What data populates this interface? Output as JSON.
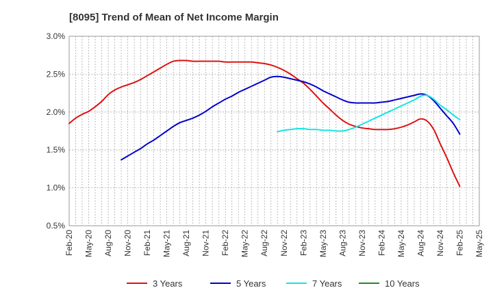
{
  "chart_data": {
    "type": "line",
    "title": "[8095]  Trend of Mean of Net Income Margin",
    "xlabel": "",
    "ylabel": "",
    "x_ticks": [
      "Feb-20",
      "May-20",
      "Aug-20",
      "Nov-20",
      "Feb-21",
      "May-21",
      "Aug-21",
      "Nov-21",
      "Feb-22",
      "May-22",
      "Aug-22",
      "Nov-22",
      "Feb-23",
      "May-23",
      "Aug-23",
      "Nov-23",
      "Feb-24",
      "May-24",
      "Aug-24",
      "Nov-24",
      "Feb-25",
      "May-25"
    ],
    "y_ticks": [
      "0.5%",
      "1.0%",
      "1.5%",
      "2.0%",
      "2.5%",
      "3.0%"
    ],
    "ylim": [
      0.5,
      3.0
    ],
    "grid": true,
    "legend_position": "bottom",
    "series": [
      {
        "name": "3 Years",
        "color": "#dd1111",
        "points": [
          [
            "Feb-20",
            1.85
          ],
          [
            "Mar-20",
            1.92
          ],
          [
            "Apr-20",
            1.97
          ],
          [
            "May-20",
            2.01
          ],
          [
            "Jun-20",
            2.07
          ],
          [
            "Jul-20",
            2.14
          ],
          [
            "Aug-20",
            2.23
          ],
          [
            "Sep-20",
            2.29
          ],
          [
            "Oct-20",
            2.33
          ],
          [
            "Nov-20",
            2.36
          ],
          [
            "Dec-20",
            2.39
          ],
          [
            "Jan-21",
            2.43
          ],
          [
            "Feb-21",
            2.48
          ],
          [
            "Mar-21",
            2.53
          ],
          [
            "Apr-21",
            2.58
          ],
          [
            "May-21",
            2.63
          ],
          [
            "Jun-21",
            2.67
          ],
          [
            "Jul-21",
            2.68
          ],
          [
            "Aug-21",
            2.68
          ],
          [
            "Sep-21",
            2.67
          ],
          [
            "Oct-21",
            2.67
          ],
          [
            "Nov-21",
            2.67
          ],
          [
            "Dec-21",
            2.67
          ],
          [
            "Jan-22",
            2.67
          ],
          [
            "Feb-22",
            2.66
          ],
          [
            "Mar-22",
            2.66
          ],
          [
            "Apr-22",
            2.66
          ],
          [
            "May-22",
            2.66
          ],
          [
            "Jun-22",
            2.66
          ],
          [
            "Jul-22",
            2.65
          ],
          [
            "Aug-22",
            2.64
          ],
          [
            "Sep-22",
            2.62
          ],
          [
            "Oct-22",
            2.59
          ],
          [
            "Nov-22",
            2.55
          ],
          [
            "Dec-22",
            2.5
          ],
          [
            "Jan-23",
            2.44
          ],
          [
            "Feb-23",
            2.38
          ],
          [
            "Mar-23",
            2.3
          ],
          [
            "Apr-23",
            2.21
          ],
          [
            "May-23",
            2.12
          ],
          [
            "Jun-23",
            2.04
          ],
          [
            "Jul-23",
            1.96
          ],
          [
            "Aug-23",
            1.89
          ],
          [
            "Sep-23",
            1.84
          ],
          [
            "Oct-23",
            1.81
          ],
          [
            "Nov-23",
            1.79
          ],
          [
            "Dec-23",
            1.78
          ],
          [
            "Jan-24",
            1.77
          ],
          [
            "Feb-24",
            1.77
          ],
          [
            "Mar-24",
            1.77
          ],
          [
            "Apr-24",
            1.78
          ],
          [
            "May-24",
            1.8
          ],
          [
            "Jun-24",
            1.83
          ],
          [
            "Jul-24",
            1.87
          ],
          [
            "Aug-24",
            1.91
          ],
          [
            "Sep-24",
            1.88
          ],
          [
            "Oct-24",
            1.77
          ],
          [
            "Nov-24",
            1.58
          ],
          [
            "Dec-24",
            1.4
          ],
          [
            "Jan-25",
            1.2
          ],
          [
            "Feb-25",
            1.02
          ]
        ]
      },
      {
        "name": "5 Years",
        "color": "#0000cc",
        "points": [
          [
            "Oct-20",
            1.37
          ],
          [
            "Nov-20",
            1.42
          ],
          [
            "Dec-20",
            1.47
          ],
          [
            "Jan-21",
            1.52
          ],
          [
            "Feb-21",
            1.58
          ],
          [
            "Mar-21",
            1.63
          ],
          [
            "Apr-21",
            1.69
          ],
          [
            "May-21",
            1.75
          ],
          [
            "Jun-21",
            1.81
          ],
          [
            "Jul-21",
            1.86
          ],
          [
            "Aug-21",
            1.89
          ],
          [
            "Sep-21",
            1.92
          ],
          [
            "Oct-21",
            1.96
          ],
          [
            "Nov-21",
            2.01
          ],
          [
            "Dec-21",
            2.07
          ],
          [
            "Jan-22",
            2.12
          ],
          [
            "Feb-22",
            2.17
          ],
          [
            "Mar-22",
            2.21
          ],
          [
            "Apr-22",
            2.26
          ],
          [
            "May-22",
            2.3
          ],
          [
            "Jun-22",
            2.34
          ],
          [
            "Jul-22",
            2.38
          ],
          [
            "Aug-22",
            2.42
          ],
          [
            "Sep-22",
            2.46
          ],
          [
            "Oct-22",
            2.47
          ],
          [
            "Nov-22",
            2.46
          ],
          [
            "Dec-22",
            2.44
          ],
          [
            "Jan-23",
            2.42
          ],
          [
            "Feb-23",
            2.4
          ],
          [
            "Mar-23",
            2.37
          ],
          [
            "Apr-23",
            2.33
          ],
          [
            "May-23",
            2.28
          ],
          [
            "Jun-23",
            2.24
          ],
          [
            "Jul-23",
            2.2
          ],
          [
            "Aug-23",
            2.16
          ],
          [
            "Sep-23",
            2.13
          ],
          [
            "Oct-23",
            2.12
          ],
          [
            "Nov-23",
            2.12
          ],
          [
            "Dec-23",
            2.12
          ],
          [
            "Jan-24",
            2.12
          ],
          [
            "Feb-24",
            2.13
          ],
          [
            "Mar-24",
            2.14
          ],
          [
            "Apr-24",
            2.16
          ],
          [
            "May-24",
            2.18
          ],
          [
            "Jun-24",
            2.2
          ],
          [
            "Jul-24",
            2.22
          ],
          [
            "Aug-24",
            2.24
          ],
          [
            "Sep-24",
            2.22
          ],
          [
            "Oct-24",
            2.15
          ],
          [
            "Nov-24",
            2.05
          ],
          [
            "Dec-24",
            1.95
          ],
          [
            "Jan-25",
            1.85
          ],
          [
            "Feb-25",
            1.71
          ]
        ]
      },
      {
        "name": "7 Years",
        "color": "#11e5e5",
        "points": [
          [
            "Oct-22",
            1.74
          ],
          [
            "Nov-22",
            1.76
          ],
          [
            "Dec-22",
            1.77
          ],
          [
            "Jan-23",
            1.78
          ],
          [
            "Feb-23",
            1.78
          ],
          [
            "Mar-23",
            1.77
          ],
          [
            "Apr-23",
            1.77
          ],
          [
            "May-23",
            1.76
          ],
          [
            "Jun-23",
            1.76
          ],
          [
            "Jul-23",
            1.75
          ],
          [
            "Aug-23",
            1.75
          ],
          [
            "Sep-23",
            1.77
          ],
          [
            "Oct-23",
            1.8
          ],
          [
            "Nov-23",
            1.84
          ],
          [
            "Dec-23",
            1.88
          ],
          [
            "Jan-24",
            1.92
          ],
          [
            "Feb-24",
            1.96
          ],
          [
            "Mar-24",
            2.0
          ],
          [
            "Apr-24",
            2.04
          ],
          [
            "May-24",
            2.08
          ],
          [
            "Jun-24",
            2.12
          ],
          [
            "Jul-24",
            2.16
          ],
          [
            "Aug-24",
            2.21
          ],
          [
            "Sep-24",
            2.22
          ],
          [
            "Oct-24",
            2.17
          ],
          [
            "Nov-24",
            2.09
          ],
          [
            "Dec-24",
            2.03
          ],
          [
            "Jan-25",
            1.96
          ],
          [
            "Feb-25",
            1.9
          ]
        ]
      },
      {
        "name": "10 Years",
        "color": "#228822",
        "points": []
      }
    ]
  }
}
